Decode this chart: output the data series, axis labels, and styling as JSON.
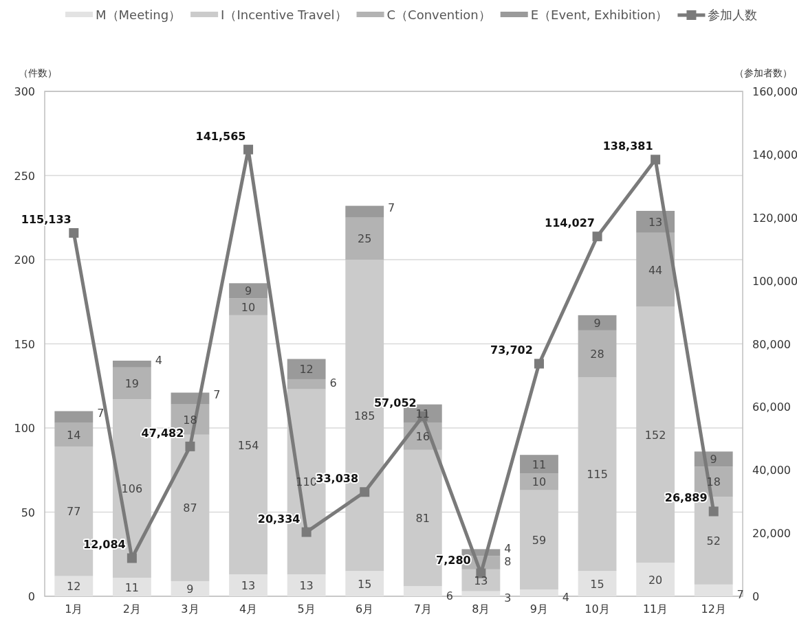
{
  "chart_data": {
    "type": "bar",
    "stacked": true,
    "ylabel": "（件数）",
    "y2label": "（参加者数）",
    "categories": [
      "1月",
      "2月",
      "3月",
      "4月",
      "5月",
      "6月",
      "7月",
      "8月",
      "9月",
      "10月",
      "11月",
      "12月"
    ],
    "series": [
      {
        "name": "M（Meeting）",
        "color": "#e3e3e3",
        "values": [
          12,
          11,
          9,
          13,
          13,
          15,
          6,
          3,
          4,
          15,
          20,
          7
        ]
      },
      {
        "name": "I（Incentive Travel）",
        "color": "#cbcbcb",
        "values": [
          77,
          106,
          87,
          154,
          110,
          185,
          81,
          13,
          59,
          115,
          152,
          52
        ]
      },
      {
        "name": "C（Convention）",
        "color": "#b3b3b3",
        "values": [
          14,
          19,
          18,
          10,
          6,
          25,
          16,
          8,
          10,
          28,
          44,
          18
        ]
      },
      {
        "name": "E（Event, Exhibition）",
        "color": "#9a9a9a",
        "values": [
          7,
          4,
          7,
          9,
          12,
          7,
          11,
          4,
          11,
          9,
          13,
          9
        ]
      },
      {
        "name": "参加人数",
        "type": "line",
        "axis": "y2",
        "marker": "square",
        "color": "#7a7a7a",
        "values": [
          115133,
          12084,
          47482,
          141565,
          20334,
          33038,
          57052,
          7280,
          73702,
          114027,
          138381,
          26889
        ],
        "value_labels": [
          "115,133",
          "12,084",
          "47,482",
          "141,565",
          "20,334",
          "33,038",
          "57,052",
          "7,280",
          "73,702",
          "114,027",
          "138,381",
          "26,889"
        ]
      }
    ],
    "ylim": [
      0,
      300
    ],
    "yticks": [
      0,
      50,
      100,
      150,
      200,
      250,
      300
    ],
    "y2lim": [
      0,
      160000
    ],
    "y2ticks": [
      {
        "value": 0,
        "label": "0"
      },
      {
        "value": 20000,
        "label": "20,000"
      },
      {
        "value": 40000,
        "label": "40,000"
      },
      {
        "value": 60000,
        "label": "60,000"
      },
      {
        "value": 80000,
        "label": "80,000"
      },
      {
        "value": 100000,
        "label": "100,000"
      },
      {
        "value": 120000,
        "label": "120,000"
      },
      {
        "value": 140000,
        "label": "140,000"
      },
      {
        "value": 160000,
        "label": "160,000"
      }
    ],
    "grid": "y",
    "legend": "top",
    "data_labels": true
  }
}
